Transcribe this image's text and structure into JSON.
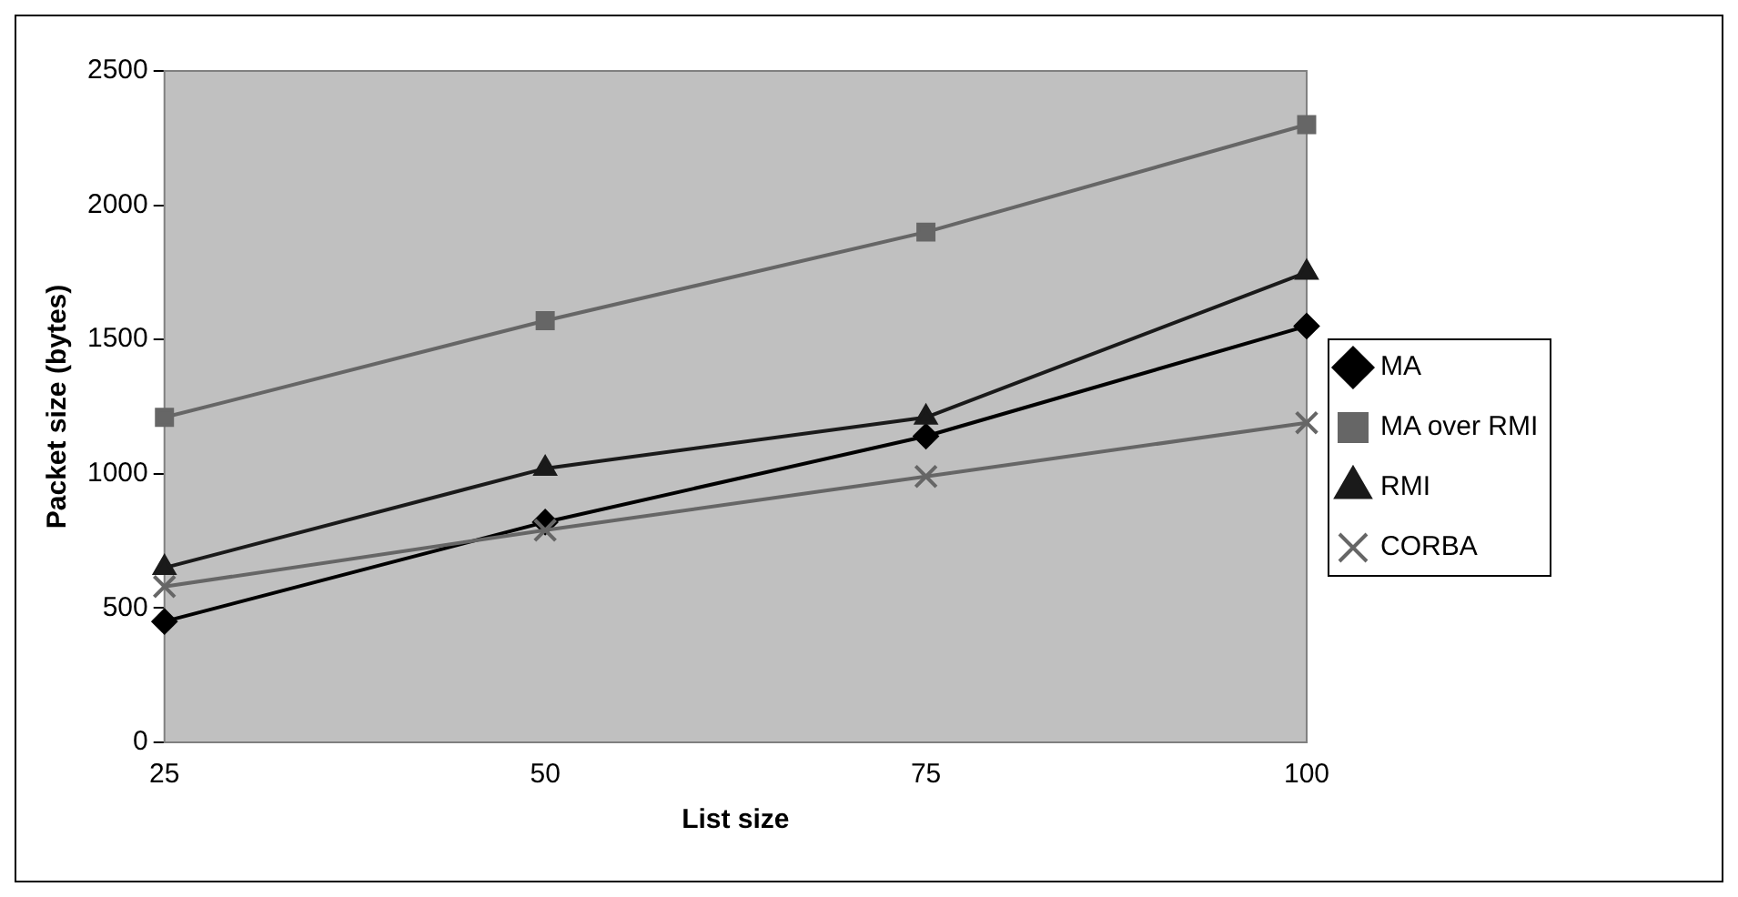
{
  "chart_data": {
    "type": "line",
    "xlabel": "List size",
    "ylabel": "Packet size (bytes)",
    "categories": [
      "25",
      "50",
      "75",
      "100"
    ],
    "ylim": [
      0,
      2500
    ],
    "yticks": [
      0,
      500,
      1000,
      1500,
      2000,
      2500
    ],
    "grid": false,
    "legend": "right",
    "series": [
      {
        "name": "MA",
        "color": "#000000",
        "marker": "diamond",
        "values": [
          450,
          820,
          1140,
          1550
        ]
      },
      {
        "name": "MA over RMI",
        "color": "#666666",
        "marker": "square",
        "values": [
          1210,
          1570,
          1900,
          2300
        ]
      },
      {
        "name": "RMI",
        "color": "#1a1a1a",
        "marker": "triangle",
        "values": [
          650,
          1020,
          1210,
          1750
        ]
      },
      {
        "name": "CORBA",
        "color": "#666666",
        "marker": "cross",
        "values": [
          580,
          790,
          990,
          1190
        ]
      }
    ]
  }
}
